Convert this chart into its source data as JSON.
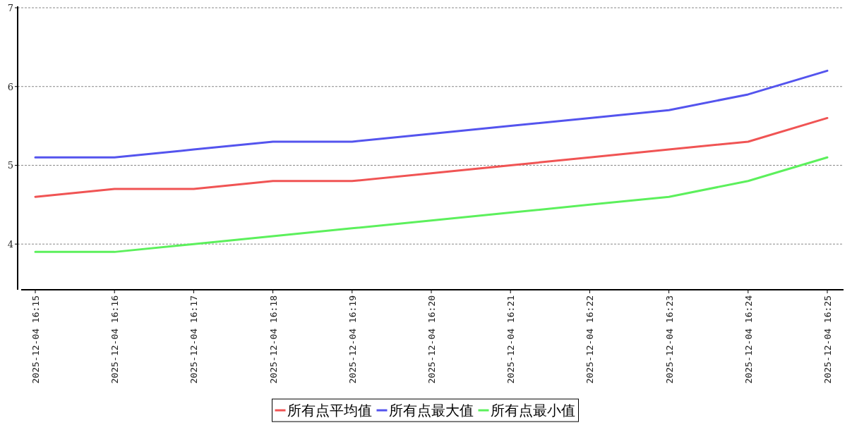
{
  "chart_data": {
    "type": "line",
    "categories": [
      "2025-12-04 16:15",
      "2025-12-04 16:16",
      "2025-12-04 16:17",
      "2025-12-04 16:18",
      "2025-12-04 16:19",
      "2025-12-04 16:20",
      "2025-12-04 16:21",
      "2025-12-04 16:22",
      "2025-12-04 16:23",
      "2025-12-04 16:24",
      "2025-12-04 16:25"
    ],
    "series": [
      {
        "name": "所有点平均值",
        "color": "#f05454",
        "values": [
          4.6,
          4.7,
          4.7,
          4.8,
          4.8,
          4.9,
          5.0,
          5.1,
          5.2,
          5.3,
          5.6
        ]
      },
      {
        "name": "所有点最大值",
        "color": "#5454ee",
        "values": [
          5.1,
          5.1,
          5.2,
          5.3,
          5.3,
          5.4,
          5.5,
          5.6,
          5.7,
          5.9,
          6.2
        ]
      },
      {
        "name": "所有点最小值",
        "color": "#5cf05c",
        "values": [
          3.9,
          3.9,
          4.0,
          4.1,
          4.2,
          4.3,
          4.4,
          4.5,
          4.6,
          4.8,
          5.1
        ]
      }
    ],
    "ylim": [
      3.42,
      7
    ],
    "yticks": [
      4,
      5,
      6,
      7
    ],
    "grid": "y",
    "legend": "bottom",
    "marker": "none",
    "line_style": "solid"
  }
}
